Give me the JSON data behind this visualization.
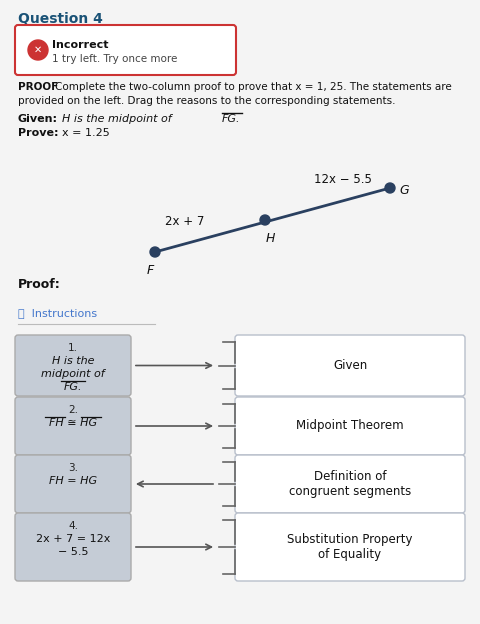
{
  "title": "Question 4",
  "page_bg": "#f4f4f4",
  "incorrect_text": "Incorrect",
  "incorrect_sub": "1 try left. Try once more",
  "proof_intro_bold": "PROOF",
  "proof_intro_rest": " Complete the two-column proof to prove that x = 1, 25. The statements are\nprovided on the left. Drag the reasons to the corresponding statements.",
  "given_label": "Given:",
  "given_rest": " H is the midpoint of ",
  "given_fg": "FG.",
  "prove_label": "Prove:",
  "prove_rest": " x = 1.25",
  "fh_label": "2x + 7",
  "hg_label": "12x − 5.5",
  "dot_color": "#2a4060",
  "line_color": "#2a4060",
  "proof_label": "Proof:",
  "instructions_label": "ⓘ  Instructions",
  "left_box_color": "#c5ccd6",
  "right_box_bg": "#ffffff",
  "right_box_border": "#b8bfcb",
  "arrow_color": "#555555",
  "brace_color": "#666666",
  "statements": [
    {
      "num": "1.",
      "text_lines": [
        "H is the",
        "midpoint of",
        "FG."
      ],
      "italic": true,
      "overline_line": 2,
      "reason": "Given",
      "arrow_dir": "right"
    },
    {
      "num": "2.",
      "text_lines": [
        "FH ≅ HG"
      ],
      "italic": true,
      "overline_fh": true,
      "overline_hg": true,
      "reason": "Midpoint Theorem",
      "arrow_dir": "right"
    },
    {
      "num": "3.",
      "text_lines": [
        "FH = HG"
      ],
      "italic": true,
      "reason": "Definition of\ncongruent segments",
      "arrow_dir": "left"
    },
    {
      "num": "4.",
      "text_lines": [
        "2x + 7 = 12x",
        "− 5.5"
      ],
      "italic": false,
      "reason": "Substitution Property\nof Equality",
      "arrow_dir": "right"
    }
  ]
}
